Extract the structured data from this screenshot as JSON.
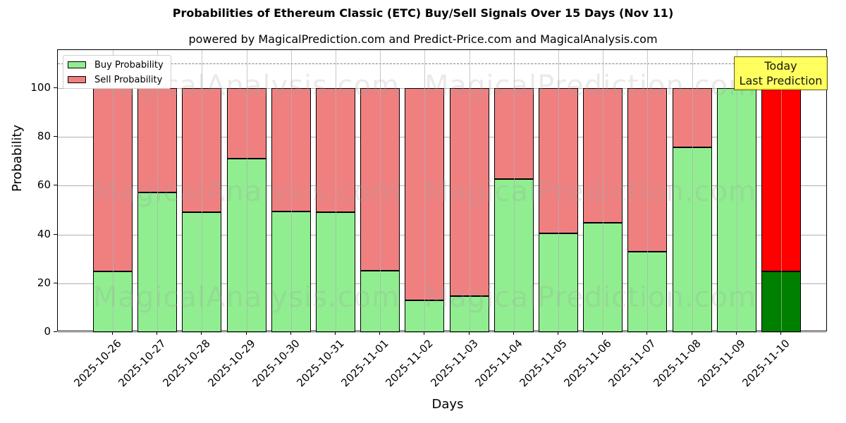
{
  "chart_data": {
    "type": "bar",
    "stacked": true,
    "title": "Probabilities of Ethereum Classic (ETC) Buy/Sell Signals Over 15 Days (Nov 11)",
    "subtitle": "powered by MagicalPrediction.com and Predict-Price.com and MagicalAnalysis.com",
    "xlabel": "Days",
    "ylabel": "Probability",
    "ylim": [
      0,
      115
    ],
    "yticks": [
      0,
      20,
      40,
      60,
      80,
      100
    ],
    "grid": true,
    "legend_position": "upper left",
    "reference_line": {
      "y": 110,
      "style": "dashed",
      "color": "#808080"
    },
    "categories": [
      "2025-10-26",
      "2025-10-27",
      "2025-10-28",
      "2025-10-29",
      "2025-10-30",
      "2025-10-31",
      "2025-11-01",
      "2025-11-02",
      "2025-11-03",
      "2025-11-04",
      "2025-11-05",
      "2025-11-06",
      "2025-11-07",
      "2025-11-08",
      "2025-11-09",
      "2025-11-10"
    ],
    "series": [
      {
        "name": "Buy Probability",
        "color": "#90ee90",
        "values": [
          24.9,
          57.1,
          49.1,
          71.0,
          49.5,
          49.0,
          25.1,
          13.0,
          14.7,
          62.7,
          40.5,
          44.8,
          32.9,
          75.7,
          100.0,
          24.9
        ]
      },
      {
        "name": "Sell Probability",
        "color": "#f08080",
        "values": [
          75.1,
          42.9,
          50.9,
          29.0,
          50.5,
          51.0,
          74.9,
          87.0,
          85.3,
          37.3,
          59.5,
          55.2,
          67.1,
          24.3,
          0.0,
          75.1
        ]
      }
    ],
    "highlight": {
      "index": 15,
      "buy_color": "#008000",
      "sell_color": "#ff0000"
    },
    "annotations": [
      {
        "text_line1": "Today",
        "text_line2": "Last Prediction",
        "background": "#ffff4d"
      }
    ],
    "watermarks": [
      "MagicalAnalysis.com",
      "MagicalPrediction.com"
    ]
  }
}
